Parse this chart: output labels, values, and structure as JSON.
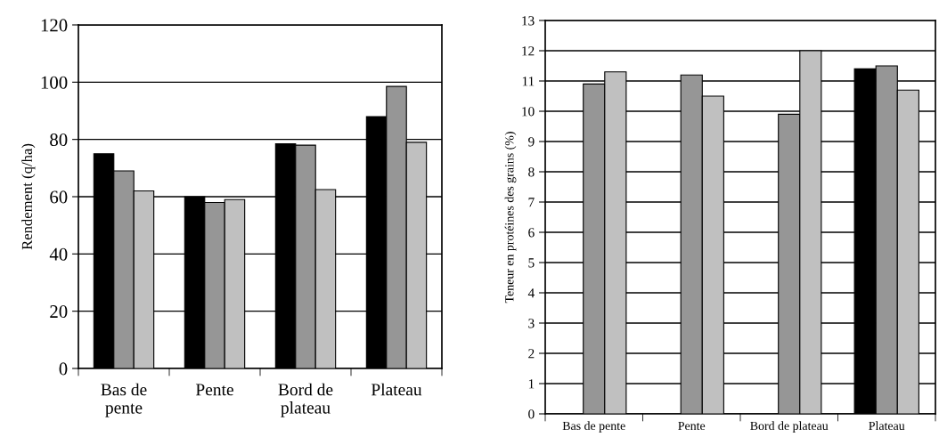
{
  "chart_data": [
    {
      "type": "bar",
      "ylabel": "Rendement (q/ha)",
      "categories": [
        "Bas de\npente",
        "Pente",
        "Bord de\nplateau",
        "Plateau"
      ],
      "ylim": [
        0,
        120
      ],
      "yticks": [
        0,
        20,
        40,
        60,
        80,
        100,
        120
      ],
      "grid": "y",
      "series": [
        {
          "color": "#000000",
          "values": [
            75,
            60,
            78.5,
            88
          ]
        },
        {
          "color": "#969696",
          "values": [
            69,
            58,
            78,
            98.5
          ]
        },
        {
          "color": "#c0c0c0",
          "values": [
            62,
            59,
            62.5,
            79
          ]
        }
      ]
    },
    {
      "type": "bar",
      "ylabel": "Teneur en protéines des grains (%)",
      "categories": [
        "Bas de pente",
        "Pente",
        "Bord de plateau",
        "Plateau"
      ],
      "ylim": [
        0,
        13
      ],
      "yticks": [
        0,
        1,
        2,
        3,
        4,
        5,
        6,
        7,
        8,
        9,
        10,
        11,
        12,
        13
      ],
      "grid": "y",
      "series": [
        {
          "color": "#000000",
          "values": [
            null,
            null,
            null,
            11.4
          ]
        },
        {
          "color": "#969696",
          "values": [
            10.9,
            11.2,
            9.9,
            11.5
          ]
        },
        {
          "color": "#c0c0c0",
          "values": [
            11.3,
            10.5,
            12.0,
            10.7
          ]
        }
      ]
    }
  ]
}
